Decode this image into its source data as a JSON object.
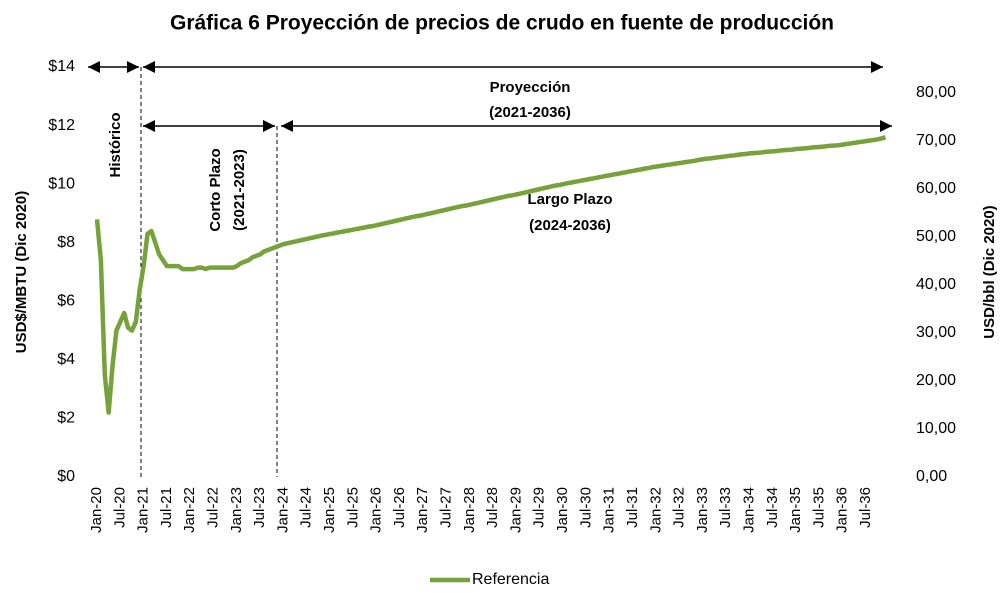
{
  "chart_data": {
    "type": "line",
    "title": "Gráfica 6 Proyección de precios de crudo en fuente de producción",
    "ylabel": "USD$/MBTU (Dic 2020)",
    "y2label": "USD/bbl (Dic 2020)",
    "annotations": [
      "Histórico",
      "Corto Plazo",
      "(2021-2023)",
      "Proyección",
      "(2021-2036)",
      "Largo Plazo",
      "(2024-2036)"
    ],
    "ylim": [
      0,
      14
    ],
    "yticks": [
      {
        "value": 0,
        "label": "$0"
      },
      {
        "value": 2,
        "label": "$2"
      },
      {
        "value": 4,
        "label": "$4"
      },
      {
        "value": 6,
        "label": "$6"
      },
      {
        "value": 8,
        "label": "$8"
      },
      {
        "value": 10,
        "label": "$10"
      },
      {
        "value": 12,
        "label": "$12"
      },
      {
        "value": 14,
        "label": "$14"
      }
    ],
    "y2lim": [
      0,
      85.4
    ],
    "y2ticks": [
      {
        "value": 0,
        "label": "0,00"
      },
      {
        "value": 10,
        "label": "10,00"
      },
      {
        "value": 20,
        "label": "20,00"
      },
      {
        "value": 30,
        "label": "30,00"
      },
      {
        "value": 40,
        "label": "40,00"
      },
      {
        "value": 50,
        "label": "50,00"
      },
      {
        "value": 60,
        "label": "60,00"
      },
      {
        "value": 70,
        "label": "70,00"
      },
      {
        "value": 80,
        "label": "80,00"
      }
    ],
    "legend": "bottom",
    "categories": [
      "Jan-20",
      null,
      null,
      null,
      null,
      null,
      "Jul-20",
      null,
      null,
      null,
      null,
      null,
      "Jan-21",
      null,
      null,
      null,
      null,
      null,
      "Jul-21",
      null,
      null,
      null,
      null,
      null,
      "Jan-22",
      null,
      null,
      null,
      null,
      null,
      "Jul-22",
      null,
      null,
      null,
      null,
      null,
      "Jan-23",
      null,
      null,
      null,
      null,
      null,
      "Jul-23",
      null,
      null,
      null,
      null,
      null,
      "Jan-24",
      null,
      null,
      null,
      null,
      null,
      "Jul-24",
      null,
      null,
      null,
      null,
      null,
      "Jan-25",
      null,
      null,
      null,
      null,
      null,
      "Jul-25",
      null,
      null,
      null,
      null,
      null,
      "Jan-26",
      null,
      null,
      null,
      null,
      null,
      "Jul-26",
      null,
      null,
      null,
      null,
      null,
      "Jan-27",
      null,
      null,
      null,
      null,
      null,
      "Jul-27",
      null,
      null,
      null,
      null,
      null,
      "Jan-28",
      null,
      null,
      null,
      null,
      null,
      "Jul-28",
      null,
      null,
      null,
      null,
      null,
      "Jan-29",
      null,
      null,
      null,
      null,
      null,
      "Jul-29",
      null,
      null,
      null,
      null,
      null,
      "Jan-30",
      null,
      null,
      null,
      null,
      null,
      "Jul-30",
      null,
      null,
      null,
      null,
      null,
      "Jan-31",
      null,
      null,
      null,
      null,
      null,
      "Jul-31",
      null,
      null,
      null,
      null,
      null,
      "Jan-32",
      null,
      null,
      null,
      null,
      null,
      "Jul-32",
      null,
      null,
      null,
      null,
      null,
      "Jan-33",
      null,
      null,
      null,
      null,
      null,
      "Jul-33",
      null,
      null,
      null,
      null,
      null,
      "Jan-34",
      null,
      null,
      null,
      null,
      null,
      "Jul-34",
      null,
      null,
      null,
      null,
      null,
      "Jan-35",
      null,
      null,
      null,
      null,
      null,
      "Jul-35",
      null,
      null,
      null,
      null,
      null,
      "Jan-36",
      null,
      null,
      null,
      null,
      null,
      "Jul-36",
      null,
      null,
      null,
      null,
      null
    ],
    "series": [
      {
        "name": "Referencia",
        "color": "#77a13a",
        "axis": "y",
        "values": [
          8.8,
          7.4,
          3.5,
          2.2,
          3.8,
          5.0,
          5.3,
          5.6,
          5.1,
          5.0,
          5.3,
          6.4,
          7.2,
          8.3,
          8.4,
          8.0,
          7.6,
          7.4,
          7.2,
          7.2,
          7.2,
          7.2,
          7.1,
          7.1,
          7.1,
          7.1,
          7.15,
          7.15,
          7.1,
          7.15,
          7.15,
          7.15,
          7.15,
          7.15,
          7.15,
          7.15,
          7.2,
          7.3,
          7.35,
          7.4,
          7.5,
          7.55,
          7.6,
          7.7,
          7.75,
          7.8,
          7.85,
          7.9,
          7.95,
          7.98,
          8.01,
          8.04,
          8.07,
          8.1,
          8.13,
          8.16,
          8.19,
          8.22,
          8.25,
          8.27,
          8.3,
          8.32,
          8.35,
          8.37,
          8.4,
          8.42,
          8.45,
          8.47,
          8.5,
          8.52,
          8.55,
          8.57,
          8.6,
          8.63,
          8.66,
          8.69,
          8.72,
          8.75,
          8.78,
          8.81,
          8.84,
          8.87,
          8.9,
          8.92,
          8.95,
          8.98,
          9.01,
          9.04,
          9.07,
          9.1,
          9.13,
          9.16,
          9.19,
          9.22,
          9.25,
          9.27,
          9.3,
          9.33,
          9.36,
          9.39,
          9.42,
          9.45,
          9.48,
          9.51,
          9.54,
          9.57,
          9.6,
          9.62,
          9.65,
          9.68,
          9.71,
          9.74,
          9.77,
          9.8,
          9.83,
          9.86,
          9.89,
          9.92,
          9.95,
          9.97,
          10.0,
          10.03,
          10.05,
          10.08,
          10.1,
          10.13,
          10.15,
          10.18,
          10.2,
          10.23,
          10.25,
          10.28,
          10.3,
          10.33,
          10.35,
          10.38,
          10.4,
          10.43,
          10.45,
          10.48,
          10.5,
          10.53,
          10.55,
          10.58,
          10.6,
          10.62,
          10.64,
          10.66,
          10.68,
          10.7,
          10.72,
          10.74,
          10.76,
          10.78,
          10.8,
          10.83,
          10.85,
          10.87,
          10.88,
          10.9,
          10.92,
          10.93,
          10.95,
          10.97,
          10.98,
          11.0,
          11.02,
          11.03,
          11.05,
          11.06,
          11.07,
          11.08,
          11.1,
          11.11,
          11.12,
          11.13,
          11.15,
          11.16,
          11.17,
          11.18,
          11.2,
          11.21,
          11.22,
          11.23,
          11.25,
          11.26,
          11.27,
          11.28,
          11.3,
          11.31,
          11.32,
          11.33,
          11.35,
          11.37,
          11.39,
          11.41,
          11.43,
          11.45,
          11.47,
          11.49,
          11.51,
          11.53,
          11.56,
          11.6
        ]
      }
    ]
  }
}
